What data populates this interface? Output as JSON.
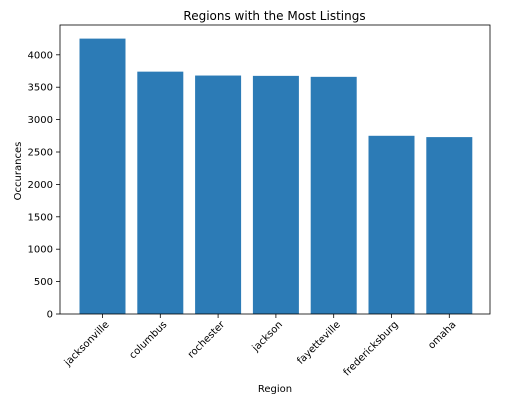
{
  "chart_data": {
    "type": "bar",
    "title": "Regions with the Most Listings",
    "xlabel": "Region",
    "ylabel": "Occurances",
    "categories": [
      "jacksonville",
      "columbus",
      "rochester",
      "jackson",
      "fayetteville",
      "fredericksburg",
      "omaha"
    ],
    "values": [
      4250,
      3740,
      3680,
      3675,
      3660,
      2750,
      2730
    ],
    "ylim": [
      0,
      4460
    ],
    "yticks": [
      0,
      500,
      1000,
      1500,
      2000,
      2500,
      3000,
      3500,
      4000
    ],
    "bar_color": "#2c7bb6",
    "grid": false,
    "legend": "none"
  }
}
